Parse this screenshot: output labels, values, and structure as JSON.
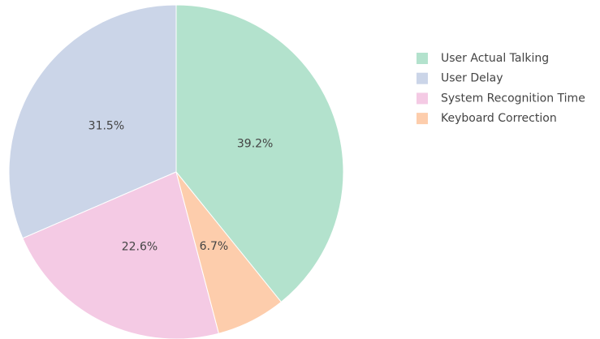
{
  "chart_data": {
    "type": "pie",
    "categories": [
      "User Actual Talking",
      "User Delay",
      "System Recognition Time",
      "Keyboard Correction"
    ],
    "values": [
      39.2,
      31.5,
      22.6,
      6.7
    ],
    "value_labels": [
      "39.2%",
      "31.5%",
      "22.6%",
      "6.7%"
    ],
    "colors": [
      "#b3e2cd",
      "#cbd5e8",
      "#f4cae4",
      "#fdcdac"
    ],
    "direction": "counterclockwise",
    "legend": "right"
  }
}
